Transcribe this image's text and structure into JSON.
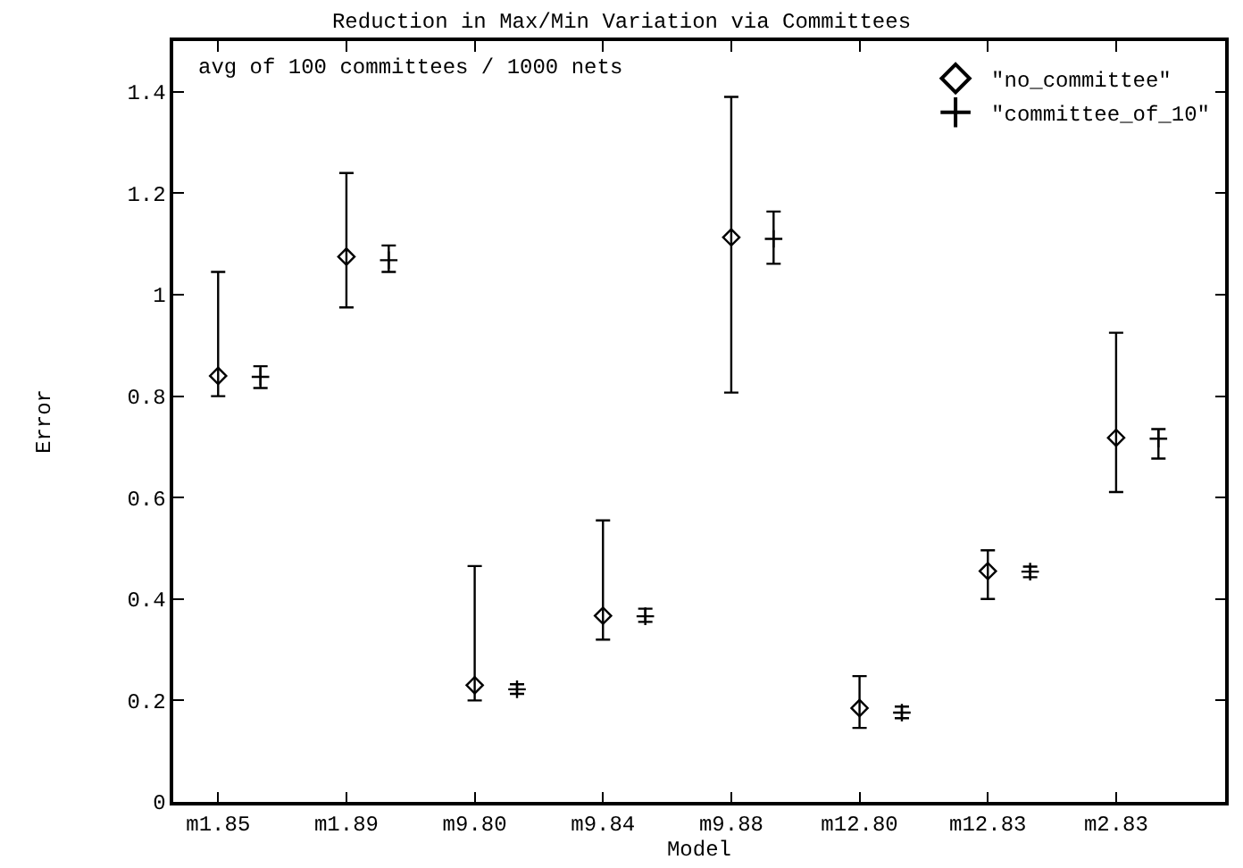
{
  "chart_data": {
    "type": "scatter",
    "title": "Reduction in Max/Min Variation via Committees",
    "xlabel": "Model",
    "ylabel": "Error",
    "annotations": [
      "avg of 100 committees / 1000 nets"
    ],
    "categories": [
      "m1.85",
      "m1.89",
      "m9.80",
      "m9.84",
      "m9.88",
      "m12.80",
      "m12.83",
      "m2.83"
    ],
    "ylim": [
      0,
      1.5
    ],
    "yticks": [
      0,
      0.2,
      0.4,
      0.6,
      0.8,
      1,
      1.2,
      1.4
    ],
    "grid": false,
    "legend": "top right",
    "series": [
      {
        "name": "\"no_committee\"",
        "color": "#000000",
        "marker": "diamond",
        "values": [
          0.84,
          1.075,
          0.23,
          0.367,
          1.113,
          0.185,
          0.455,
          0.718
        ],
        "errors": [
          [
            0.8,
            1.045
          ],
          [
            0.975,
            1.24
          ],
          [
            0.2,
            0.465
          ],
          [
            0.32,
            0.555
          ],
          [
            0.807,
            1.39
          ],
          [
            0.146,
            0.248
          ],
          [
            0.4,
            0.496
          ],
          [
            0.611,
            0.925
          ]
        ]
      },
      {
        "name": "\"committee_of_10\"",
        "color": "#000000",
        "marker": "cross",
        "values": [
          0.838,
          1.068,
          0.222,
          0.366,
          1.11,
          0.176,
          0.454,
          0.716
        ],
        "errors": [
          [
            0.816,
            0.859
          ],
          [
            1.045,
            1.097
          ],
          [
            0.213,
            0.232
          ],
          [
            0.355,
            0.381
          ],
          [
            1.061,
            1.164
          ],
          [
            0.165,
            0.188
          ],
          [
            0.443,
            0.464
          ],
          [
            0.677,
            0.735
          ]
        ]
      }
    ]
  }
}
